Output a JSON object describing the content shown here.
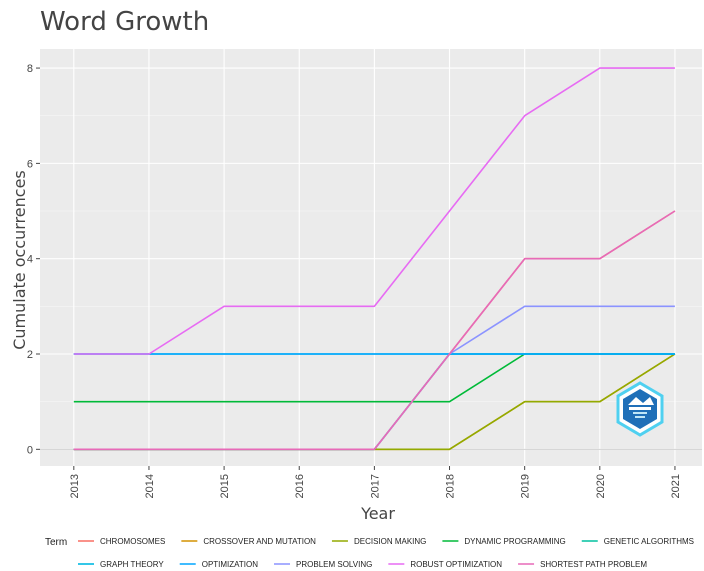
{
  "chart_data": {
    "type": "line",
    "title": "Word Growth",
    "xlabel": "Year",
    "ylabel": "Cumulate occurrences",
    "x": [
      2013,
      2014,
      2015,
      2016,
      2017,
      2018,
      2019,
      2020,
      2021
    ],
    "ylim": [
      -0.35,
      8.4
    ],
    "yticks": [
      0,
      2,
      4,
      6,
      8
    ],
    "grid": true,
    "legend_title": "Term",
    "legend_position": "bottom",
    "series": [
      {
        "name": "CHROMOSOMES",
        "color": "#f8766d",
        "values": [
          0,
          0,
          0,
          0,
          0,
          2,
          4,
          4,
          5
        ]
      },
      {
        "name": "CROSSOVER AND MUTATION",
        "color": "#d39200",
        "values": [
          0,
          0,
          0,
          0,
          0,
          0,
          1,
          1,
          2
        ]
      },
      {
        "name": "DECISION MAKING",
        "color": "#93aa00",
        "values": [
          0,
          0,
          0,
          0,
          0,
          0,
          1,
          1,
          2
        ]
      },
      {
        "name": "DYNAMIC PROGRAMMING",
        "color": "#00ba38",
        "values": [
          1,
          1,
          1,
          1,
          1,
          1,
          2,
          2,
          2
        ]
      },
      {
        "name": "GENETIC ALGORITHMS",
        "color": "#00c19f",
        "values": [
          0,
          0,
          0,
          0,
          0,
          2,
          2,
          2,
          2
        ]
      },
      {
        "name": "GRAPH THEORY",
        "color": "#00b9e3",
        "values": [
          2,
          2,
          2,
          2,
          2,
          2,
          2,
          2,
          2
        ]
      },
      {
        "name": "OPTIMIZATION",
        "color": "#00a6ff",
        "values": [
          2,
          2,
          2,
          2,
          2,
          2,
          2,
          2,
          2
        ]
      },
      {
        "name": "PROBLEM SOLVING",
        "color": "#8b93ff",
        "values": [
          0,
          0,
          0,
          0,
          0,
          2,
          3,
          3,
          3
        ]
      },
      {
        "name": "ROBUST OPTIMIZATION",
        "color": "#e76bf3",
        "values": [
          2,
          2,
          3,
          3,
          3,
          5,
          7,
          8,
          8
        ]
      },
      {
        "name": "SHORTEST PATH PROBLEM",
        "color": "#e76ab8",
        "values": [
          0,
          0,
          0,
          0,
          0,
          2,
          4,
          4,
          5
        ]
      }
    ]
  },
  "logo": {
    "name": "bibliometrix-logo",
    "color": "#1f6fb8"
  }
}
